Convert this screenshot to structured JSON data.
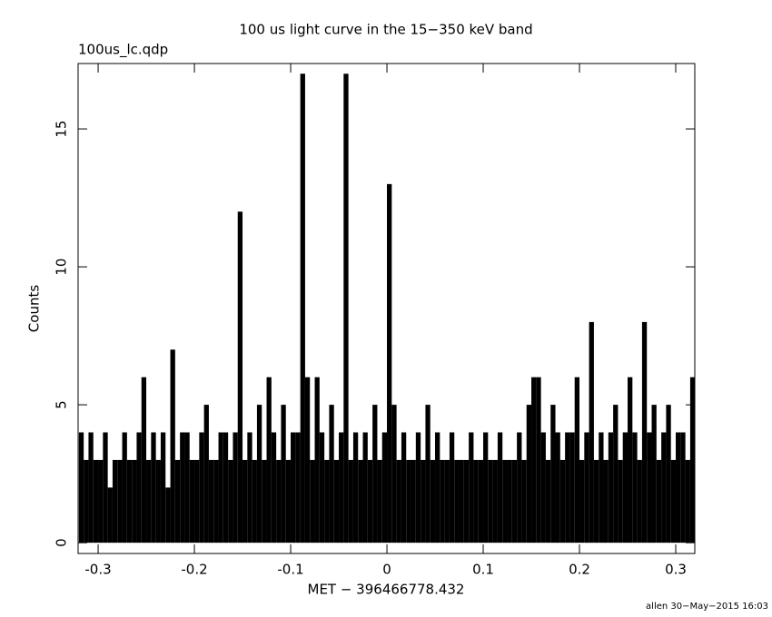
{
  "chart_data": {
    "type": "histogram-step",
    "title": "100 us light curve in the 15−350 keV band",
    "subtitle": "100us_lc.qdp",
    "x_label": "MET − 396466778.432",
    "y_label": "Counts",
    "footer": "allen 30−May−2015 16:03",
    "color": "#000000",
    "xlim": [
      -0.3208,
      0.3198
    ],
    "ylim": [
      -0.39,
      17.37
    ],
    "xticks": [
      -0.3,
      -0.2,
      -0.1,
      0,
      0.1,
      0.2,
      0.3
    ],
    "yticks": [
      0,
      5,
      10,
      15
    ],
    "bin_width": 0.005,
    "x": [
      -0.3175,
      -0.3125,
      -0.3075,
      -0.3025,
      -0.2975,
      -0.2925,
      -0.2875,
      -0.2825,
      -0.2775,
      -0.2725,
      -0.2675,
      -0.2625,
      -0.2575,
      -0.2525,
      -0.2475,
      -0.2425,
      -0.2375,
      -0.2325,
      -0.2275,
      -0.2225,
      -0.2175,
      -0.2125,
      -0.2075,
      -0.2025,
      -0.1975,
      -0.1925,
      -0.1875,
      -0.1825,
      -0.1775,
      -0.1725,
      -0.1675,
      -0.1625,
      -0.1575,
      -0.1525,
      -0.1475,
      -0.1425,
      -0.1375,
      -0.1325,
      -0.1275,
      -0.1225,
      -0.1175,
      -0.1125,
      -0.1075,
      -0.1025,
      -0.0975,
      -0.0925,
      -0.0875,
      -0.0825,
      -0.0775,
      -0.0725,
      -0.0675,
      -0.0625,
      -0.0575,
      -0.0525,
      -0.0475,
      -0.0425,
      -0.0375,
      -0.0325,
      -0.0275,
      -0.0225,
      -0.0175,
      -0.0125,
      -0.0075,
      -0.0025,
      0.0025,
      0.0075,
      0.0125,
      0.0175,
      0.0225,
      0.0275,
      0.0325,
      0.0375,
      0.0425,
      0.0475,
      0.0525,
      0.0575,
      0.0625,
      0.0675,
      0.0725,
      0.0775,
      0.0825,
      0.0875,
      0.0925,
      0.0975,
      0.1025,
      0.1075,
      0.1125,
      0.1175,
      0.1225,
      0.1275,
      0.1325,
      0.1375,
      0.1425,
      0.1475,
      0.1525,
      0.1575,
      0.1625,
      0.1675,
      0.1725,
      0.1775,
      0.1825,
      0.1875,
      0.1925,
      0.1975,
      0.2025,
      0.2075,
      0.2125,
      0.2175,
      0.2225,
      0.2275,
      0.2325,
      0.2375,
      0.2425,
      0.2475,
      0.2525,
      0.2575,
      0.2625,
      0.2675,
      0.2725,
      0.2775,
      0.2825,
      0.2875,
      0.2925,
      0.2975,
      0.3025,
      0.3075,
      0.3125,
      0.3175
    ],
    "values": [
      4,
      3,
      4,
      3,
      3,
      4,
      2,
      3,
      3,
      4,
      3,
      3,
      4,
      6,
      3,
      4,
      3,
      4,
      2,
      7,
      3,
      4,
      4,
      3,
      3,
      4,
      5,
      3,
      3,
      4,
      4,
      3,
      4,
      12,
      3,
      4,
      3,
      5,
      3,
      6,
      4,
      3,
      5,
      3,
      4,
      4,
      17,
      6,
      3,
      6,
      4,
      3,
      5,
      3,
      4,
      17,
      3,
      4,
      3,
      4,
      3,
      5,
      3,
      4,
      13,
      5,
      3,
      4,
      3,
      3,
      4,
      3,
      5,
      3,
      4,
      3,
      3,
      4,
      3,
      3,
      3,
      4,
      3,
      3,
      4,
      3,
      3,
      4,
      3,
      3,
      3,
      4,
      3,
      5,
      6,
      6,
      4,
      3,
      5,
      4,
      3,
      4,
      4,
      6,
      3,
      4,
      8,
      3,
      4,
      3,
      4,
      5,
      3,
      4,
      6,
      4,
      3,
      8,
      4,
      5,
      3,
      4,
      5,
      3,
      4,
      4,
      3,
      6
    ]
  }
}
